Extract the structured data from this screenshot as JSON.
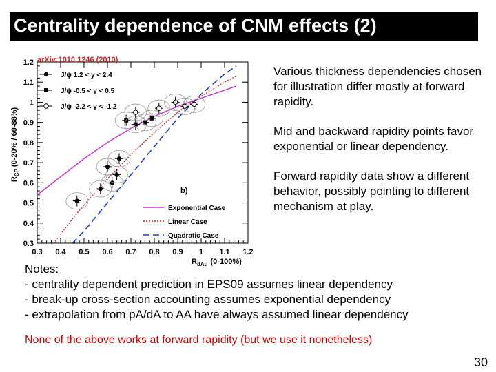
{
  "slide": {
    "title": "Centrality dependence of CNM effects (2)",
    "page_number": "30"
  },
  "bullets": [
    "Various thickness dependencies chosen for illustration differ mostly at forward rapidity.",
    "Mid and backward rapidity points favor exponential or linear dependency.",
    "Forward rapidity data show a different behavior, possibly pointing to different mechanism at play."
  ],
  "notes": {
    "heading": "Notes:",
    "items": [
      "- centrality dependent prediction in EPS09 assumes linear dependency",
      "- break-up cross-section accounting assumes exponential dependency",
      "- extrapolation from pA/dA to AA have always assumed linear dependency"
    ]
  },
  "conclusion": "None of the above works at forward rapidity (but we use it nonetheless)",
  "chart_data": {
    "type": "scatter",
    "annotation": "arXiv:1010,1246 (2010)",
    "panel_label": "b)",
    "xlabel_main": "R",
    "xlabel_sub": "dAu",
    "xlabel_suffix": "(0-100%)",
    "ylabel_main": "R",
    "ylabel_sub": "CP",
    "ylabel_suffix": "(0-20% / 60-88%)",
    "xlim": [
      0.3,
      1.2
    ],
    "ylim": [
      0.3,
      1.2
    ],
    "x_ticks": [
      "0.3",
      "0.4",
      "0.5",
      "0.6",
      "0.7",
      "0.8",
      "0.9",
      "1",
      "1.1",
      "1.2"
    ],
    "y_ticks": [
      "0.3",
      "0.4",
      "0.5",
      "0.6",
      "0.7",
      "0.8",
      "0.9",
      "1",
      "1.1",
      "1.2"
    ],
    "colors": {
      "exponential": "#cc33cc",
      "linear": "#cc2222",
      "quadratic": "#1f3fbf"
    },
    "legend_data": [
      {
        "label": "J/ψ  1.2 < y < 2.4",
        "marker": "filled-circle"
      },
      {
        "label": "J/ψ  -0.5 < y < 0.5",
        "marker": "filled-square"
      },
      {
        "label": "J/ψ  -2.2 < y < -1.2",
        "marker": "open-circle"
      }
    ],
    "legend_curves": [
      {
        "label": "Exponential Case",
        "style": "solid",
        "color": "#cc33cc"
      },
      {
        "label": "Linear Case",
        "style": "dotted",
        "color": "#cc2222"
      },
      {
        "label": "Quadratic Case",
        "style": "dashed",
        "color": "#1f3fbf"
      }
    ],
    "series": [
      {
        "name": "J/ψ  1.2 < y < 2.4",
        "marker": "filled-circle",
        "points": [
          {
            "x": 0.47,
            "y": 0.51
          },
          {
            "x": 0.57,
            "y": 0.57
          },
          {
            "x": 0.62,
            "y": 0.6
          },
          {
            "x": 0.64,
            "y": 0.64
          },
          {
            "x": 0.6,
            "y": 0.68
          },
          {
            "x": 0.65,
            "y": 0.72
          }
        ]
      },
      {
        "name": "J/ψ  -0.5 < y < 0.5",
        "marker": "filled-square",
        "points": [
          {
            "x": 0.68,
            "y": 0.91
          },
          {
            "x": 0.72,
            "y": 0.89
          },
          {
            "x": 0.76,
            "y": 0.9
          },
          {
            "x": 0.79,
            "y": 0.92
          }
        ]
      },
      {
        "name": "J/ψ  -2.2 < y < -1.2",
        "marker": "open-circle",
        "points": [
          {
            "x": 0.72,
            "y": 0.95
          },
          {
            "x": 0.82,
            "y": 0.97
          },
          {
            "x": 0.89,
            "y": 1.0
          },
          {
            "x": 0.93,
            "y": 0.98
          },
          {
            "x": 0.97,
            "y": 0.99
          }
        ]
      }
    ],
    "curves": {
      "exponential": {
        "x": [
          0.3,
          0.4,
          0.5,
          0.6,
          0.7,
          0.8,
          0.9,
          1.0,
          1.1,
          1.15
        ],
        "y": [
          0.54,
          0.63,
          0.72,
          0.8,
          0.87,
          0.93,
          0.98,
          1.02,
          1.06,
          1.08
        ]
      },
      "linear": {
        "x": [
          0.37,
          0.45,
          0.5,
          0.6,
          0.7,
          0.8,
          0.9,
          1.0,
          1.1,
          1.15
        ],
        "y": [
          0.3,
          0.42,
          0.49,
          0.62,
          0.74,
          0.85,
          0.95,
          1.03,
          1.1,
          1.13
        ]
      },
      "quadratic": {
        "x": [
          0.45,
          0.5,
          0.6,
          0.7,
          0.8,
          0.9,
          1.0,
          1.1,
          1.15
        ],
        "y": [
          0.3,
          0.36,
          0.5,
          0.64,
          0.78,
          0.92,
          1.04,
          1.14,
          1.18
        ]
      }
    }
  }
}
